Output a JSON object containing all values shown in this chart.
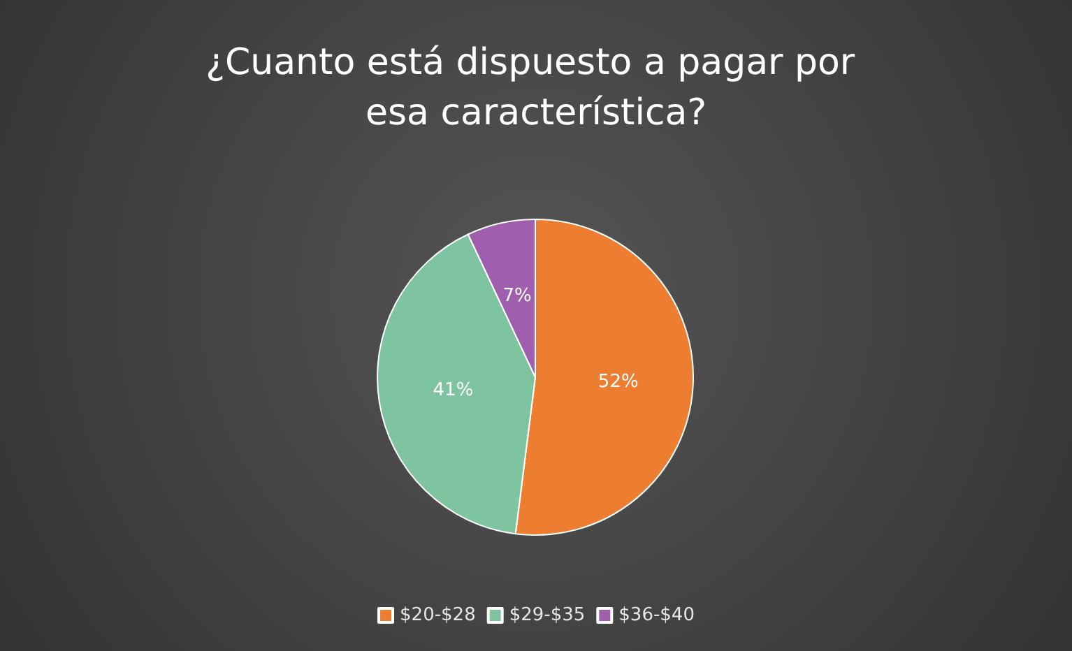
{
  "chart_data": {
    "type": "pie",
    "title": "¿Cuanto está dispuesto a pagar por esa característica?",
    "categories": [
      "$20-$28",
      "$29-$35",
      "$36-$40"
    ],
    "values": [
      52,
      41,
      7
    ],
    "value_labels": [
      "52%",
      "41%",
      "7%"
    ],
    "colors": [
      "#ed7d31",
      "#7fc4a0",
      "#a05fae"
    ],
    "legend": "bottom"
  }
}
